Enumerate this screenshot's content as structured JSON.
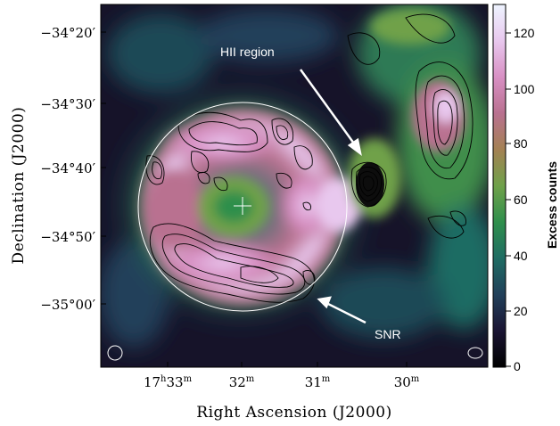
{
  "figure": {
    "xlabel": "Right Ascension (J2000)",
    "ylabel": "Declination (J2000)",
    "x_ticks": [
      {
        "h": "17",
        "hs": "h",
        "m": "33",
        "ms": "m"
      },
      {
        "h": "",
        "hs": "",
        "m": "32",
        "ms": "m"
      },
      {
        "h": "",
        "hs": "",
        "m": "31",
        "ms": "m"
      },
      {
        "h": "",
        "hs": "",
        "m": "30",
        "ms": "m"
      }
    ],
    "y_ticks": [
      "−34°20′",
      "−34°30′",
      "−34°40′",
      "−34°50′",
      "−35°00′"
    ],
    "colorbar": {
      "label": "Excess counts",
      "ticks": [
        "120",
        "100",
        "80",
        "60",
        "40",
        "20",
        "0"
      ],
      "range": [
        0,
        130
      ],
      "colors": [
        "#000000",
        "#1a1433",
        "#21405a",
        "#1f6c63",
        "#2f8f4c",
        "#6fa14a",
        "#a48153",
        "#b97190",
        "#d890c4",
        "#e8c8ee",
        "#eef4ff"
      ]
    },
    "annotations": {
      "hii": "HII region",
      "snr": "SNR"
    }
  }
}
